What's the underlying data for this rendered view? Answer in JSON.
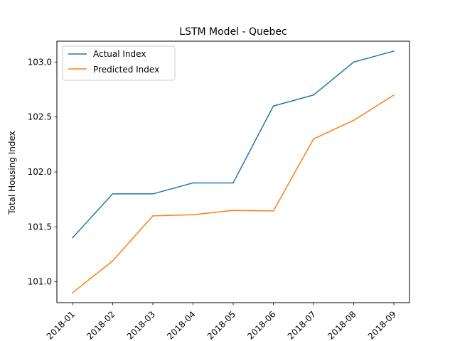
{
  "chart_data": {
    "type": "line",
    "title": "LSTM Model - Quebec",
    "xlabel": "",
    "ylabel": "Total Housing Index",
    "x": [
      "2018-01",
      "2018-02",
      "2018-03",
      "2018-04",
      "2018-05",
      "2018-06",
      "2018-07",
      "2018-08",
      "2018-09"
    ],
    "series": [
      {
        "name": "Actual Index",
        "color": "#1f77b4",
        "values": [
          101.4,
          101.8,
          101.8,
          101.9,
          101.9,
          102.6,
          102.7,
          103.0,
          103.1
        ]
      },
      {
        "name": "Predicted Index",
        "color": "#ff7f0e",
        "values": [
          100.9,
          101.19,
          101.6,
          101.61,
          101.65,
          101.645,
          102.3,
          102.47,
          102.7
        ]
      }
    ],
    "ylim": [
      100.81,
      103.19
    ],
    "yticks": [
      "101.0",
      "101.5",
      "102.0",
      "102.5",
      "103.0"
    ],
    "grid": false,
    "legend_position": "upper-left"
  }
}
